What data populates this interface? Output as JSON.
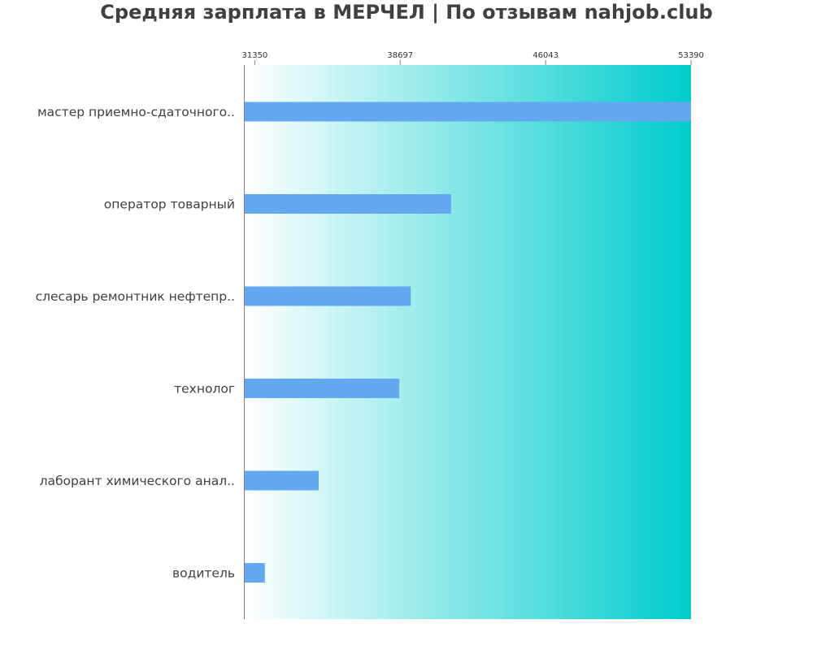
{
  "chart_data": {
    "type": "bar",
    "orientation": "horizontal",
    "title": "Средняя зарплата в МЕРЧЕЛ | По отзывам nahjob.club",
    "xlabel": "",
    "ylabel": "",
    "categories": [
      "мастер приемно-сдаточного..",
      "оператор товарный",
      "слесарь ремонтник нефтепр..",
      "технолог",
      "лаборант химического анал..",
      "водитель"
    ],
    "values": [
      53390,
      41270,
      39230,
      38650,
      34580,
      31860
    ],
    "x_ticks": [
      "31350",
      "38697",
      "46043",
      "53390"
    ],
    "tick_values": [
      31350,
      38697,
      46043,
      53390
    ],
    "xlim": [
      30800,
      53390
    ],
    "x_axis_position": "top",
    "grid": false,
    "legend": "none",
    "colors": {
      "bar": "#64a8f0",
      "background_start": "#ffffff",
      "background_end": "#00cccc",
      "axis": "#808080",
      "title": "#404040",
      "label": "#404040"
    }
  }
}
